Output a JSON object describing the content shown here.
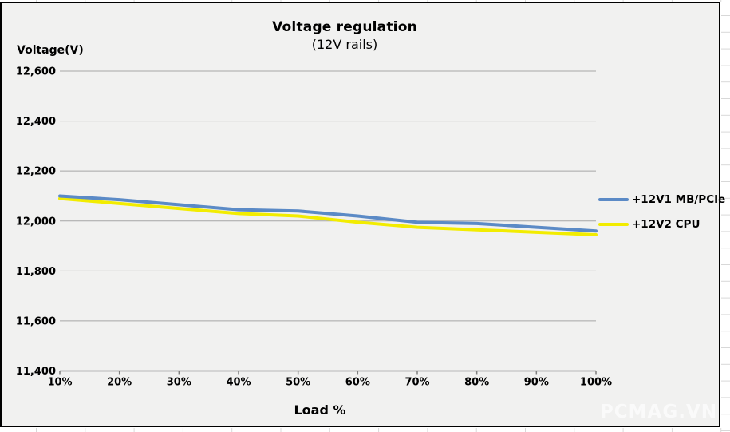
{
  "watermark": "PCMAG.VN",
  "colors": {
    "series1_blue": "#5b8ac6",
    "series2_yellow": "#f2ec00",
    "gridline": "#a6a6a6",
    "axis": "#7f7f7f",
    "chart_background": "#f1f1f0",
    "cell_line": "#d8d8d8",
    "text": "#000000"
  },
  "chart_data": {
    "type": "line",
    "title": "Voltage regulation",
    "subtitle": "(12V rails)",
    "xlabel": "Load %",
    "ylabel": "Voltage(V)",
    "categories": [
      "10%",
      "20%",
      "30%",
      "40%",
      "50%",
      "60%",
      "70%",
      "80%",
      "90%",
      "100%"
    ],
    "series": [
      {
        "name": "+12V1 MB/PCIe",
        "color": "#5b8ac6",
        "values": [
          12100,
          12085,
          12065,
          12045,
          12040,
          12020,
          11995,
          11990,
          11975,
          11960
        ]
      },
      {
        "name": "+12V2 CPU",
        "color": "#f2ec00",
        "values": [
          12090,
          12070,
          12050,
          12030,
          12020,
          11995,
          11975,
          11965,
          11955,
          11945
        ]
      }
    ],
    "ylim": [
      11400,
      12600
    ],
    "ytick_values": [
      12600,
      12400,
      12200,
      12000,
      11800,
      11600,
      11400
    ],
    "ytick_labels": [
      "12,600",
      "12,400",
      "12,200",
      "12,000",
      "11,800",
      "11,600",
      "11,400"
    ],
    "grid": true,
    "legend_position": "right"
  }
}
